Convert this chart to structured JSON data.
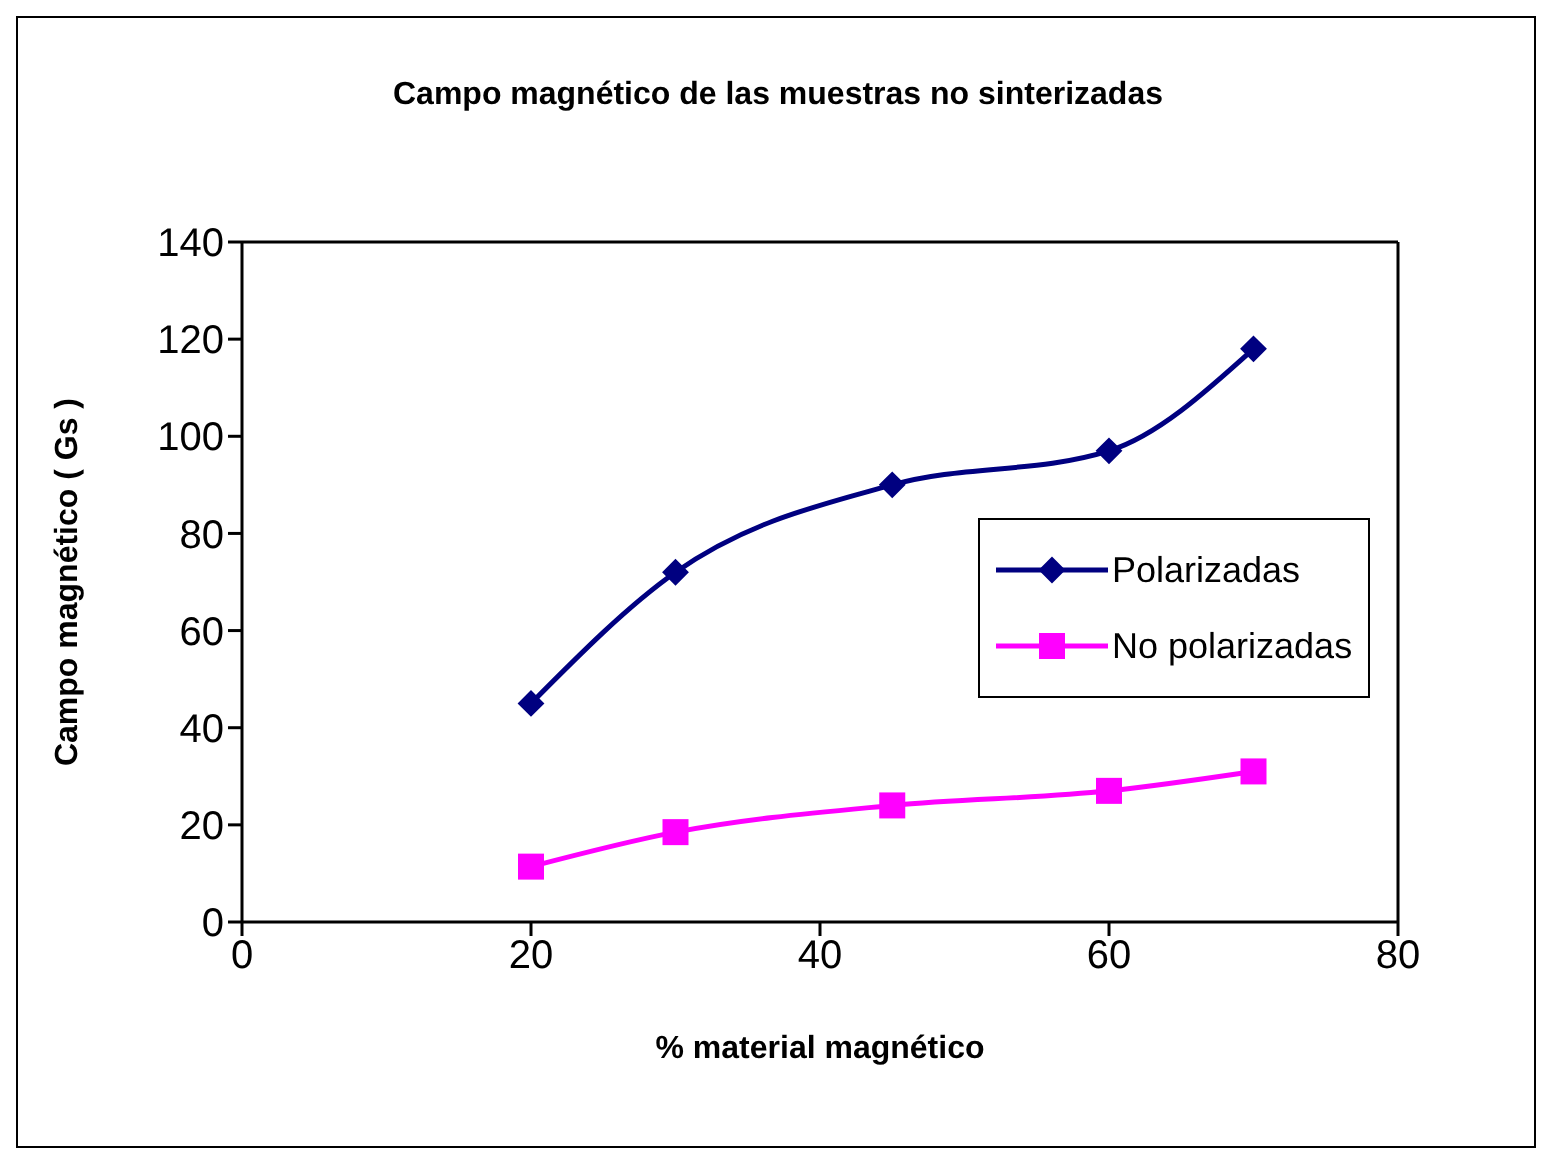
{
  "chart_data": {
    "type": "line",
    "title": "Campo magnético de las muestras no sinterizadas",
    "xlabel": "% material magnético",
    "ylabel": "Campo magnético ( Gs )",
    "x": [
      20,
      30,
      45,
      60,
      70
    ],
    "series": [
      {
        "name": "Polarizadas",
        "color": "#000080",
        "marker": "diamond",
        "values": [
          45,
          72,
          90,
          97,
          118
        ]
      },
      {
        "name": "No polarizadas",
        "color": "#ff00ff",
        "marker": "square",
        "values": [
          11.4,
          18.5,
          24,
          27,
          31
        ]
      }
    ],
    "xlim": [
      0,
      80
    ],
    "xticks": [
      0,
      20,
      40,
      60,
      80
    ],
    "ylim": [
      0,
      140
    ],
    "yticks": [
      0,
      20,
      40,
      60,
      80,
      100,
      120,
      140
    ],
    "grid": false,
    "legend": "right",
    "line_style": "solid"
  }
}
